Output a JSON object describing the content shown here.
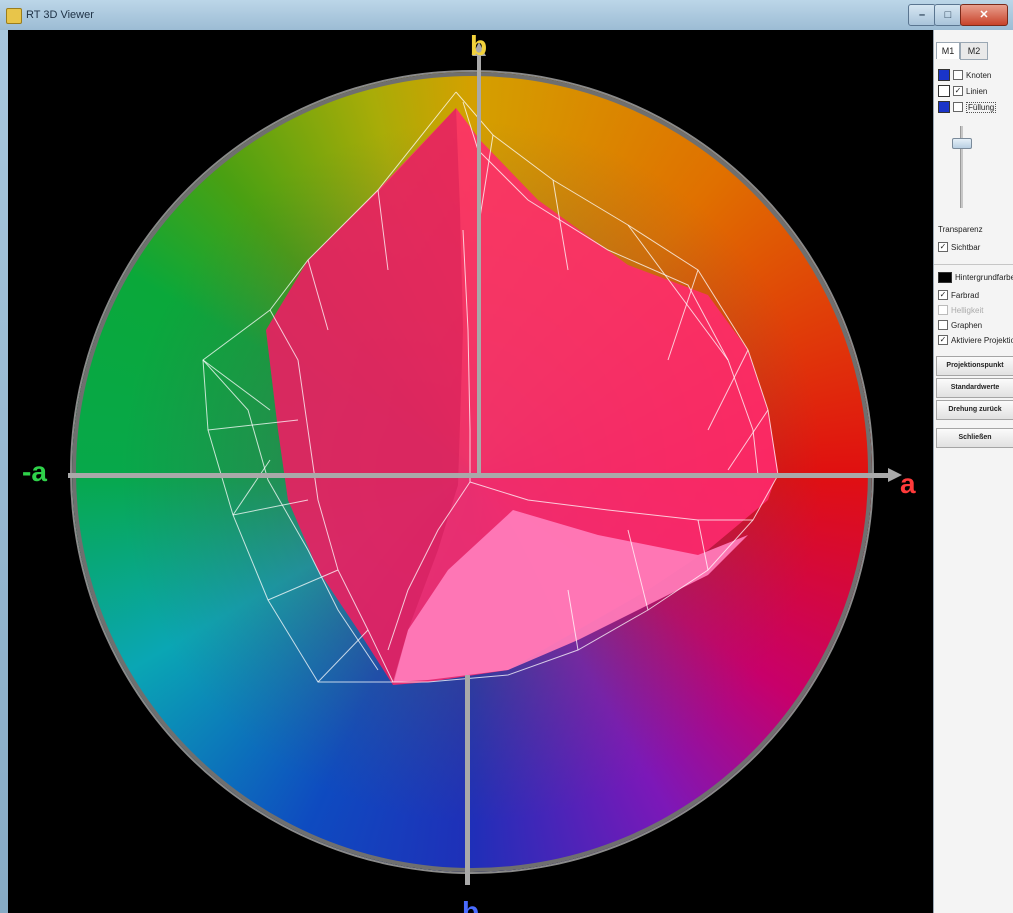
{
  "window": {
    "title": "RT 3D Viewer"
  },
  "axes": {
    "pos_a": "a",
    "neg_a": "-a",
    "pos_b": "b",
    "neg_b": "b"
  },
  "panel": {
    "tabs": [
      "M1",
      "M2"
    ],
    "rows": [
      {
        "label": "Knoten",
        "checked": false,
        "swatch": "#1a34c8"
      },
      {
        "label": "Linien",
        "checked": true,
        "swatch": "#ffffff"
      },
      {
        "label": "Füllung",
        "checked": false,
        "swatch": "#1a34c8"
      }
    ],
    "transparency_label": "Transparenz",
    "visible_label": "Sichtbar",
    "visible_checked": true,
    "background_label": "Hintergrundfarbe",
    "options": [
      {
        "label": "Farbrad",
        "checked": true,
        "disabled": false
      },
      {
        "label": "Helligkeit",
        "checked": false,
        "disabled": true
      },
      {
        "label": "Graphen",
        "checked": false,
        "disabled": false
      },
      {
        "label": "Aktiviere Projektion",
        "checked": true,
        "disabled": false
      }
    ],
    "buttons": [
      "Projektionspunkt",
      "Standardwerte",
      "Drehung zurück",
      "Schließen"
    ]
  },
  "colors": {
    "gamut_fill": "#ff2a6e",
    "gamut_light": "#ff6fb0",
    "wireframe": "#ffffff",
    "background": "#000000"
  }
}
